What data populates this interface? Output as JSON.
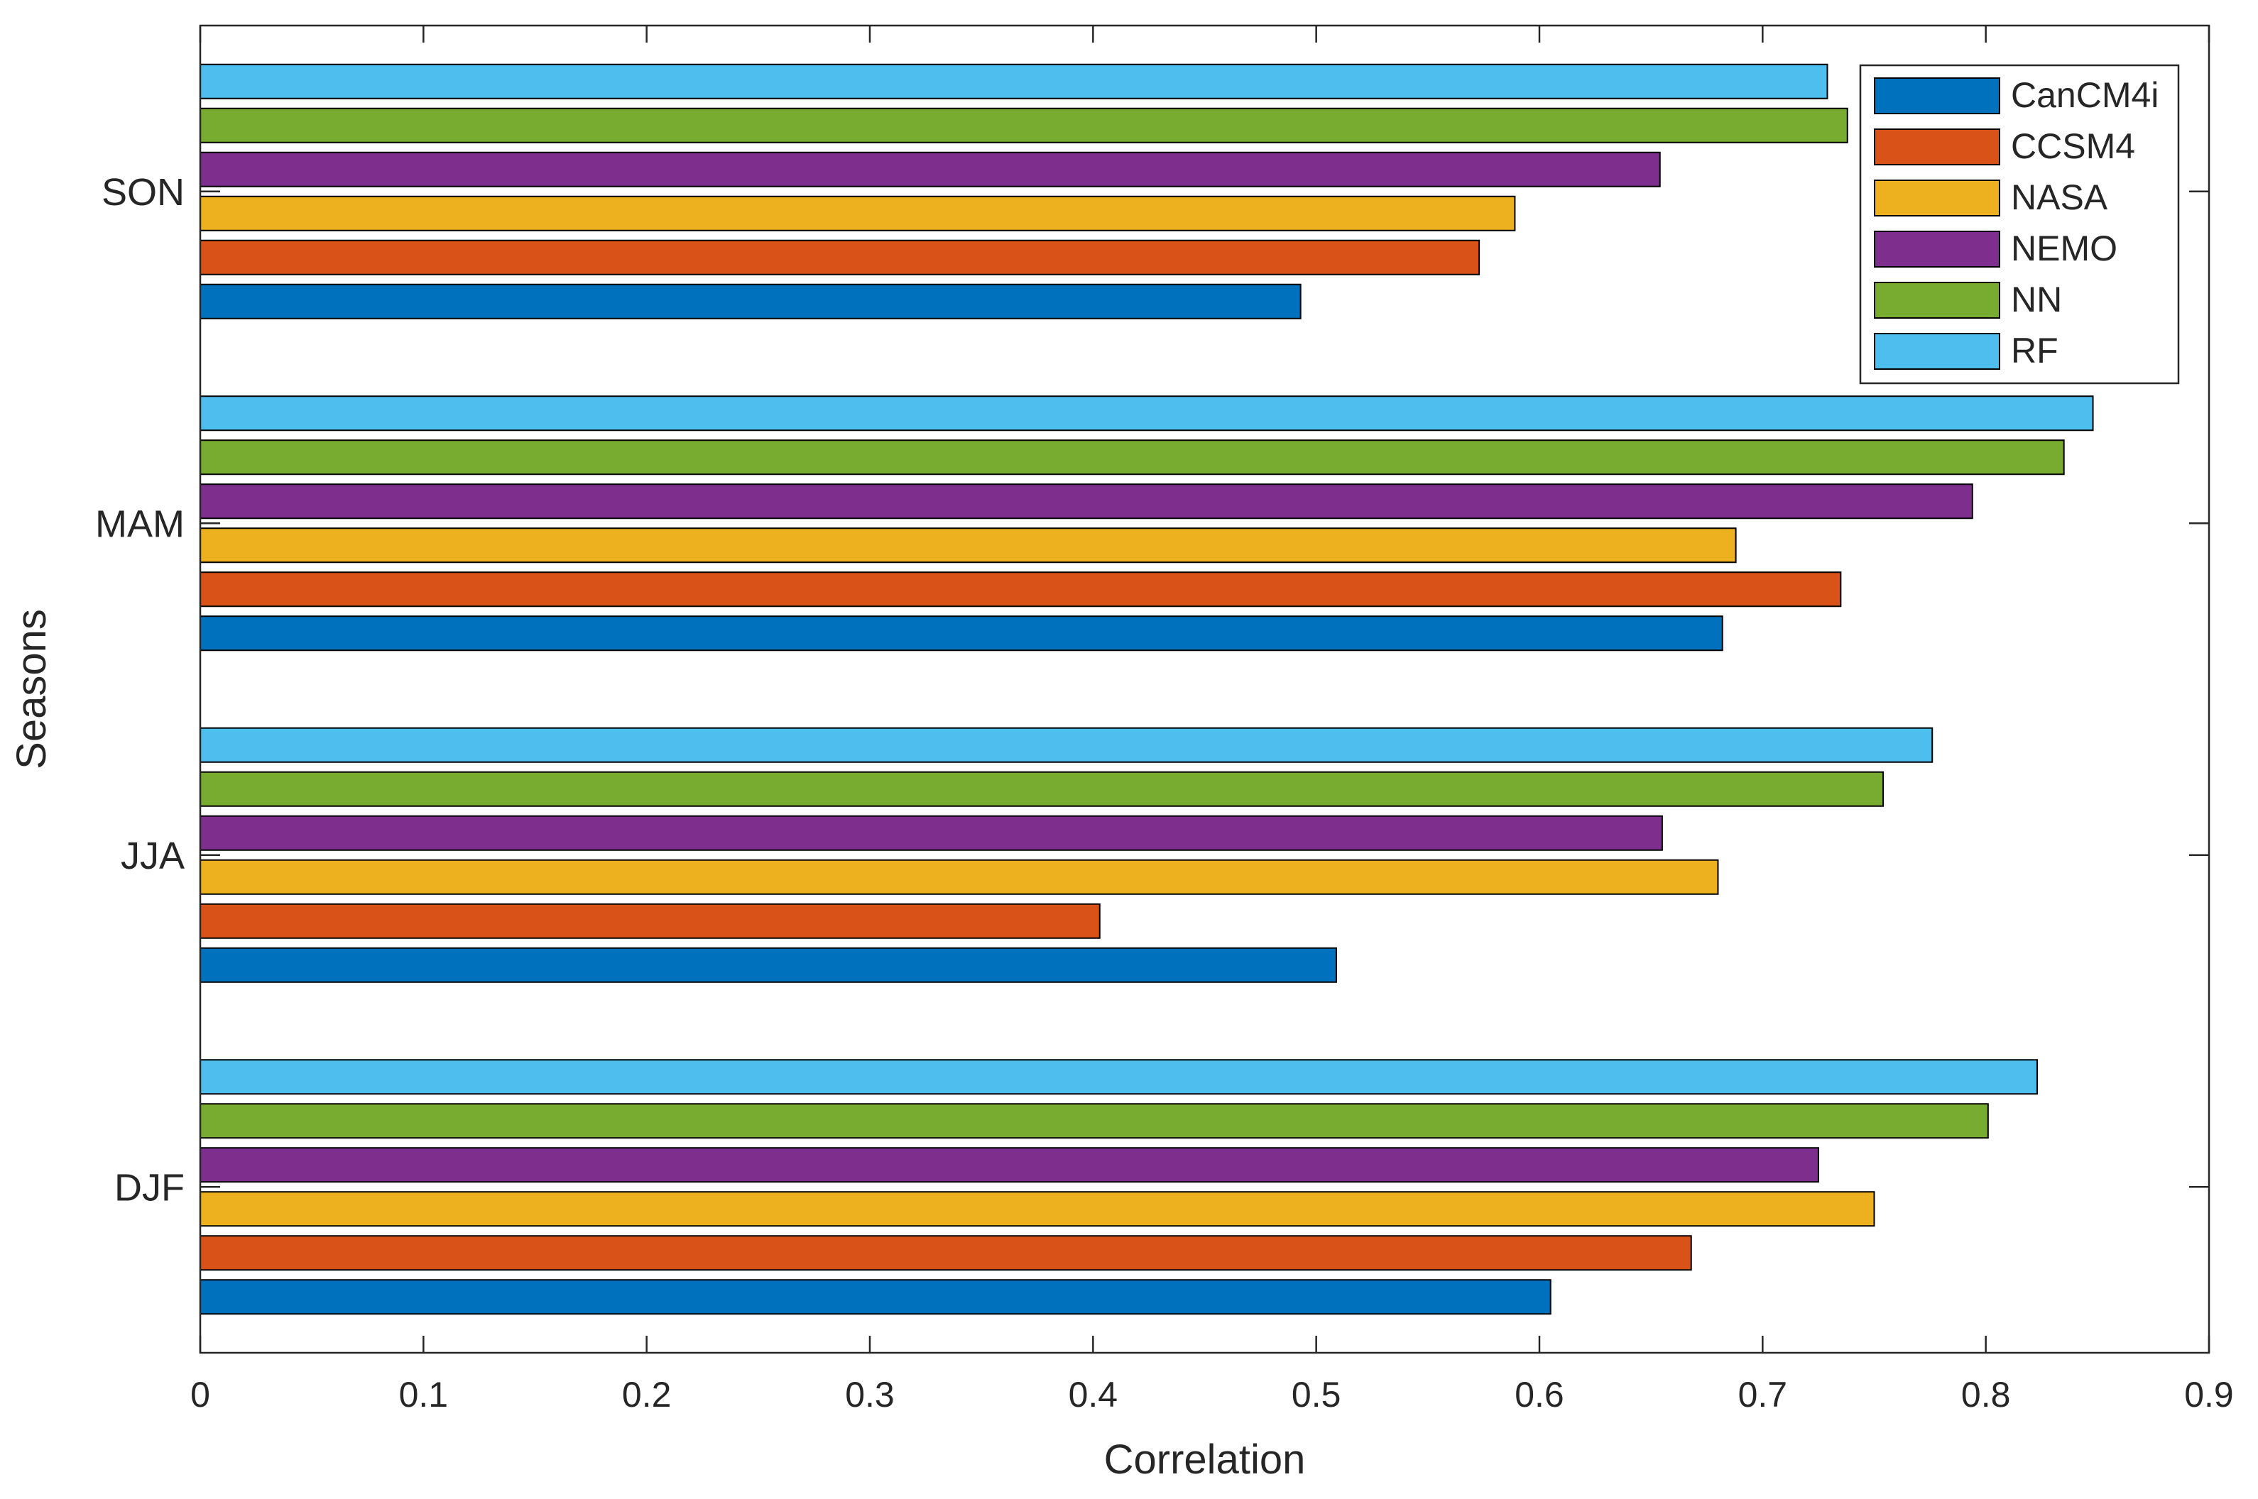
{
  "chart_data": {
    "type": "bar",
    "orientation": "horizontal",
    "categories": [
      "DJF",
      "JJA",
      "MAM",
      "SON"
    ],
    "series": [
      {
        "name": "CanCM4i",
        "color": "#0072BD",
        "values": [
          0.605,
          0.509,
          0.682,
          0.493
        ]
      },
      {
        "name": "CCSM4",
        "color": "#D95319",
        "values": [
          0.668,
          0.403,
          0.735,
          0.573
        ]
      },
      {
        "name": "NASA",
        "color": "#EDB120",
        "values": [
          0.75,
          0.68,
          0.688,
          0.589
        ]
      },
      {
        "name": "NEMO",
        "color": "#7E2F8E",
        "values": [
          0.725,
          0.655,
          0.794,
          0.654
        ]
      },
      {
        "name": "NN",
        "color": "#77AC30",
        "values": [
          0.801,
          0.754,
          0.835,
          0.738
        ]
      },
      {
        "name": "RF",
        "color": "#4DBEEE",
        "values": [
          0.823,
          0.776,
          0.848,
          0.729
        ]
      }
    ],
    "title": "",
    "xlabel": "Correlation",
    "ylabel": "Seasons",
    "xlim": [
      0,
      0.9
    ],
    "xticks": [
      "0",
      "0.1",
      "0.2",
      "0.3",
      "0.4",
      "0.5",
      "0.6",
      "0.7",
      "0.8",
      "0.9"
    ],
    "grid": false,
    "legend_position": "top-right"
  }
}
